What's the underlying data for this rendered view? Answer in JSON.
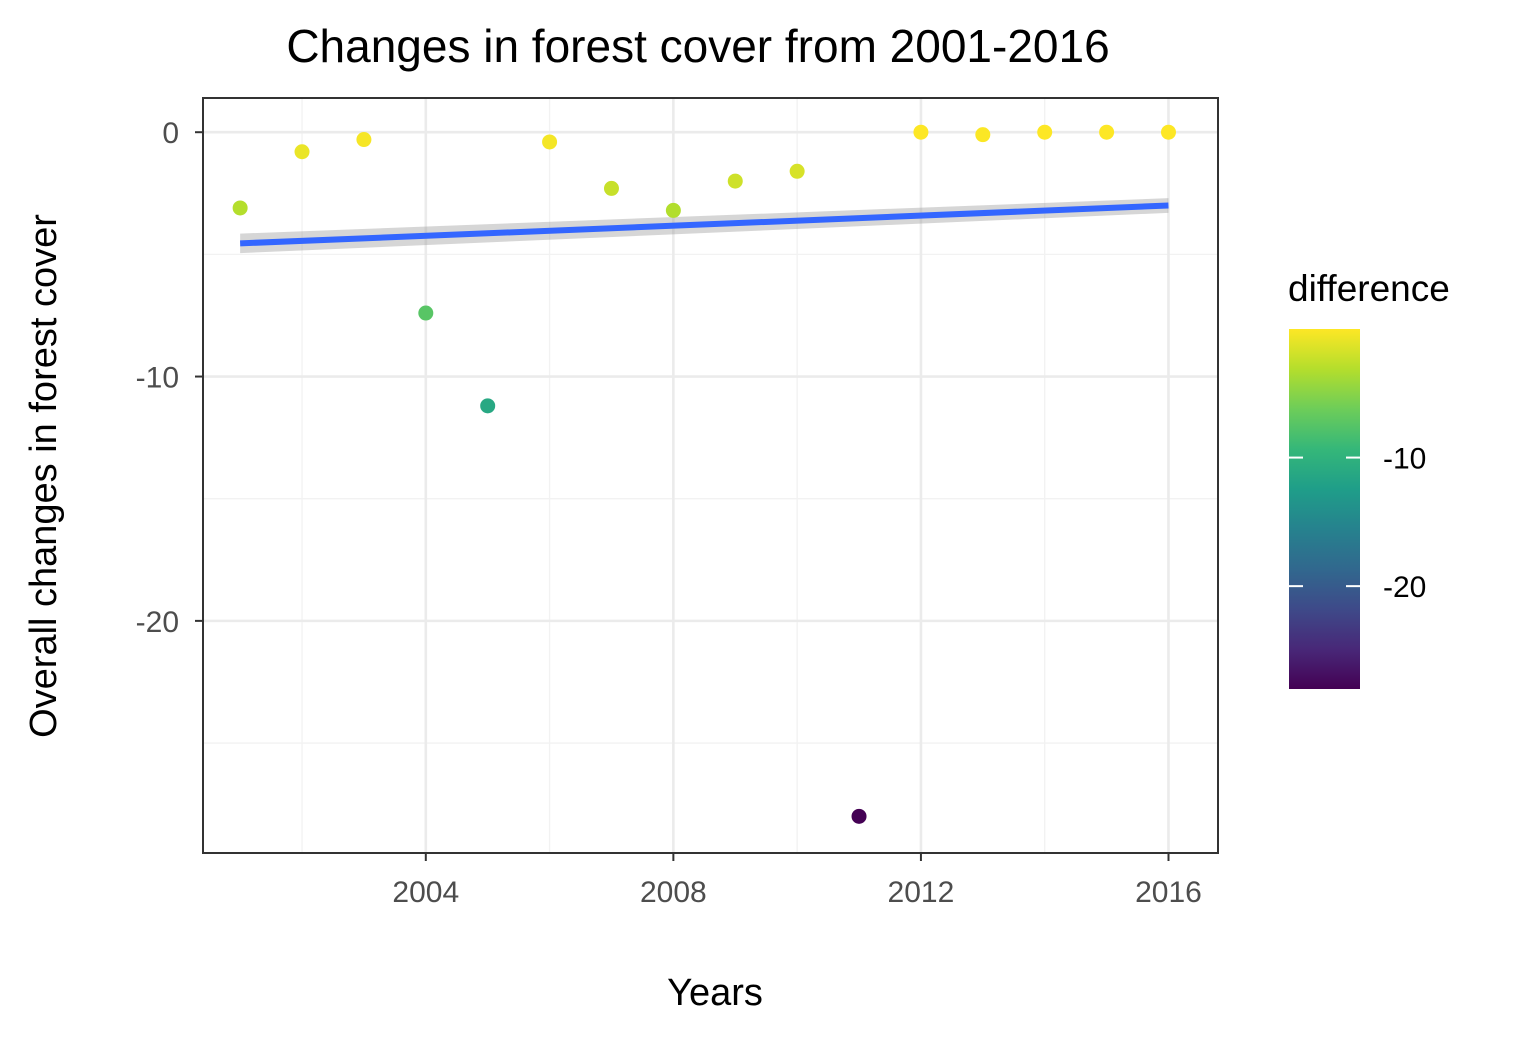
{
  "chart_data": {
    "type": "scatter",
    "title": "Changes in forest cover from 2001-2016",
    "xlabel": "Years",
    "ylabel": "Overall changes in forest cover",
    "xlim": [
      2000.4,
      2016.8
    ],
    "ylim": [
      -29.5,
      1.4
    ],
    "x_ticks": [
      2004,
      2008,
      2012,
      2016
    ],
    "x_tick_labels": [
      "2004",
      "2008",
      "2012",
      "2016"
    ],
    "x_minor_ticks": [
      2002,
      2006,
      2010,
      2014
    ],
    "y_ticks": [
      0,
      -10,
      -20
    ],
    "y_tick_labels": [
      "0",
      "-10",
      "-20"
    ],
    "y_minor_ticks": [
      -5,
      -15,
      -25
    ],
    "grid": true,
    "points": {
      "x": [
        2001,
        2002,
        2003,
        2004,
        2005,
        2006,
        2007,
        2008,
        2009,
        2010,
        2011,
        2012,
        2013,
        2014,
        2015,
        2016
      ],
      "y": [
        -3.1,
        -0.8,
        -0.3,
        -7.4,
        -11.2,
        -0.4,
        -2.3,
        -3.2,
        -2.0,
        -1.6,
        -28.0,
        0.0,
        -0.1,
        0.0,
        0.0,
        0.0
      ]
    },
    "trend_line": {
      "method": "linear",
      "x": [
        2001,
        2016
      ],
      "y": [
        -4.55,
        -3.0
      ],
      "se_band": {
        "lower": [
          -4.95,
          -3.3
        ],
        "upper": [
          -4.15,
          -2.7
        ]
      },
      "color": "#3366FF"
    },
    "legend": {
      "title": "difference",
      "type": "colorbar",
      "position": "right",
      "range": [
        -28.0,
        0.0
      ],
      "ticks": [
        -10,
        -20
      ],
      "tick_labels": [
        "-10",
        "-20"
      ],
      "colors": [
        "#440154",
        "#482878",
        "#3E4A89",
        "#31688E",
        "#26828E",
        "#1F9E89",
        "#35B779",
        "#6DCD59",
        "#B4DE2C",
        "#FDE725"
      ]
    }
  }
}
